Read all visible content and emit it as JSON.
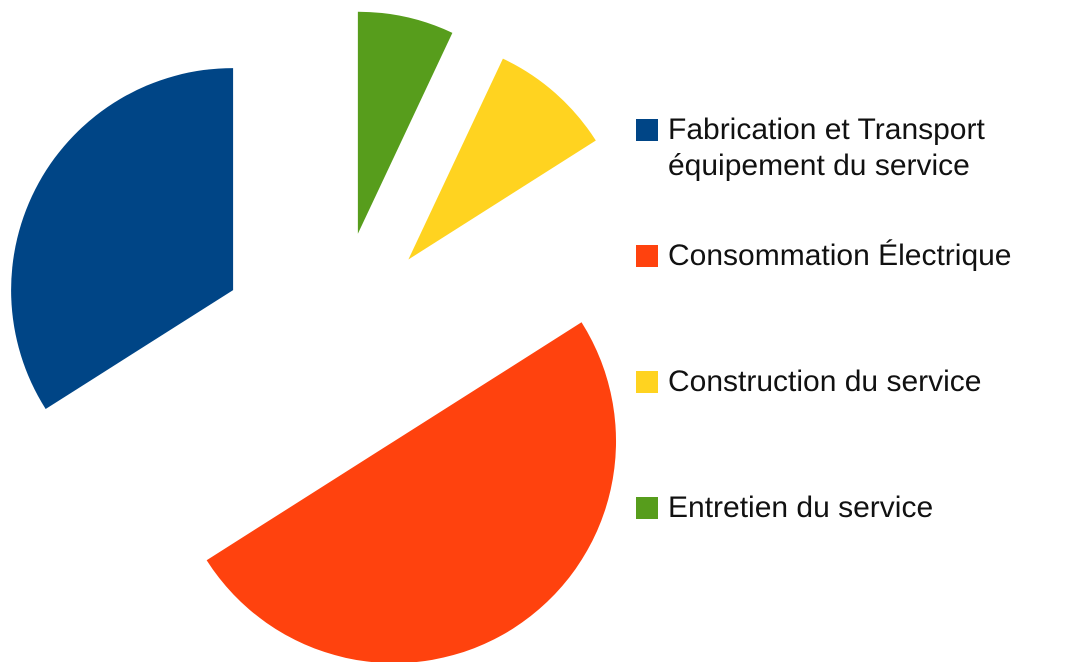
{
  "chart_data": {
    "type": "pie",
    "categories": [
      "Fabrication et Transport équipement du service",
      "Consommation Électrique",
      "Construction du service",
      "Entretien du service"
    ],
    "values": [
      34,
      50,
      9,
      7
    ],
    "colors": [
      "#004586",
      "#ff420e",
      "#ffd320",
      "#579d1c"
    ],
    "exploded": true,
    "legend": "right"
  }
}
